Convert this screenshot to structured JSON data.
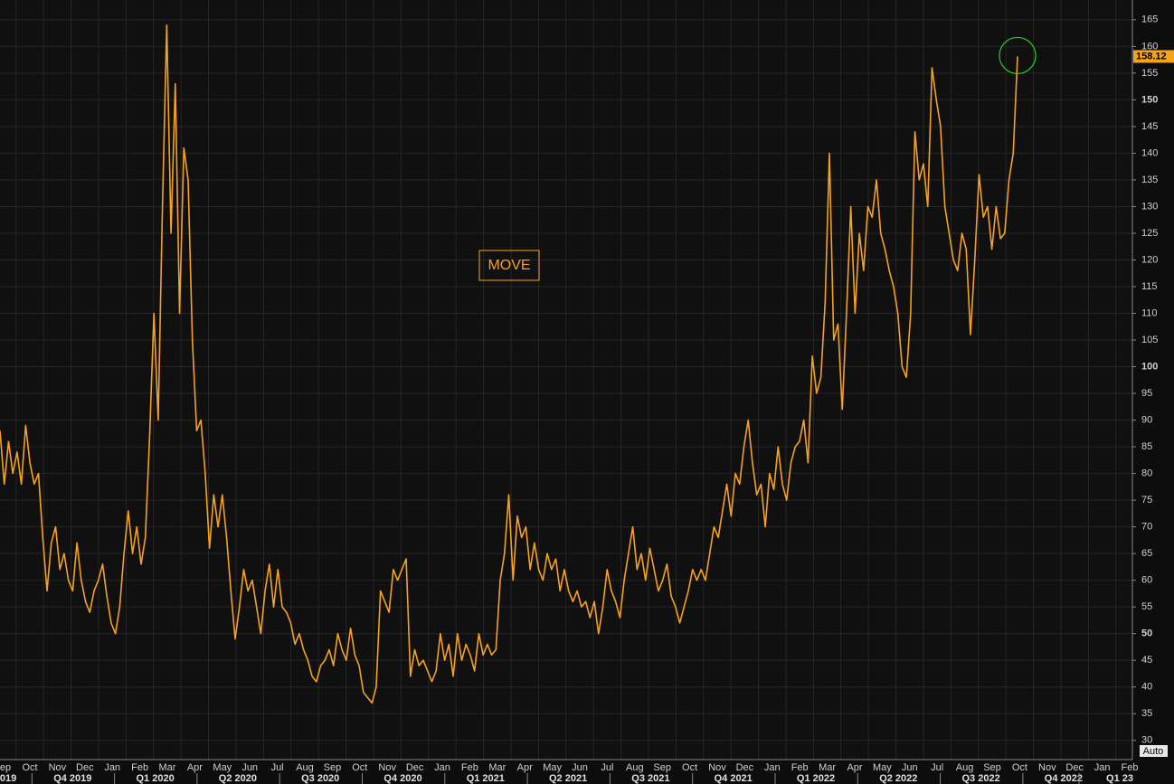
{
  "chart_data": {
    "type": "line",
    "series": [
      {
        "name": "MOVE",
        "color": "#f7a21b",
        "values": [
          88,
          78,
          86,
          80,
          84,
          78,
          89,
          82,
          78,
          80,
          68,
          58,
          67,
          70,
          62,
          65,
          60,
          58,
          67,
          60,
          56,
          54,
          58,
          60,
          63,
          57,
          52,
          50,
          55,
          65,
          73,
          65,
          70,
          63,
          68,
          87,
          110,
          90,
          130,
          164,
          125,
          153,
          110,
          141,
          135,
          105,
          88,
          90,
          80,
          66,
          76,
          70,
          76,
          68,
          58,
          49,
          55,
          62,
          58,
          60,
          55,
          50,
          58,
          63,
          55,
          62,
          55,
          54,
          52,
          48,
          50,
          47,
          45,
          42,
          41,
          44,
          45,
          47,
          44,
          50,
          47,
          45,
          51,
          46,
          44,
          39,
          38,
          37,
          40,
          58,
          56,
          54,
          62,
          60,
          62,
          64,
          42,
          47,
          44,
          45,
          43,
          41,
          43,
          50,
          45,
          48,
          42,
          50,
          45,
          48,
          46,
          43,
          50,
          46,
          48,
          46,
          47,
          60,
          65,
          76,
          60,
          72,
          68,
          70,
          62,
          67,
          62,
          60,
          65,
          62,
          64,
          58,
          62,
          58,
          56,
          58,
          55,
          56,
          53,
          56,
          50,
          55,
          62,
          58,
          56,
          53,
          60,
          65,
          70,
          62,
          65,
          60,
          66,
          62,
          58,
          60,
          63,
          57,
          55,
          52,
          55,
          58,
          62,
          60,
          62,
          60,
          65,
          70,
          68,
          73,
          78,
          72,
          80,
          78,
          85,
          90,
          82,
          76,
          78,
          70,
          80,
          77,
          85,
          78,
          75,
          82,
          85,
          86,
          90,
          82,
          102,
          95,
          98,
          112,
          140,
          105,
          108,
          92,
          110,
          130,
          110,
          125,
          118,
          130,
          128,
          135,
          125,
          122,
          118,
          115,
          110,
          100,
          98,
          110,
          144,
          135,
          138,
          130,
          156,
          150,
          145,
          130,
          125,
          120,
          118,
          125,
          122,
          106,
          120,
          136,
          128,
          130,
          122,
          130,
          124,
          125,
          135,
          140,
          158.12
        ]
      }
    ],
    "months": [
      "ep",
      "Oct",
      "Nov",
      "Dec",
      "Jan",
      "Feb",
      "Mar",
      "Apr",
      "May",
      "Jun",
      "Jul",
      "Aug",
      "Sep",
      "Oct",
      "Nov",
      "Dec",
      "Jan",
      "Feb",
      "Mar",
      "Apr",
      "May",
      "Jun",
      "Jul",
      "Aug",
      "Sep",
      "Oct",
      "Nov",
      "Dec",
      "Jan",
      "Feb",
      "Mar",
      "Apr",
      "May",
      "Jun",
      "Jul",
      "Aug",
      "Sep",
      "Oct",
      "Nov",
      "Dec",
      "Jan",
      "Feb"
    ],
    "quarters": [
      "019",
      "Q4 2019",
      "Q1 2020",
      "Q2 2020",
      "Q3 2020",
      "Q4 2020",
      "Q1 2021",
      "Q2 2021",
      "Q3 2021",
      "Q4 2021",
      "Q1 2022",
      "Q2 2022",
      "Q3 2022",
      "Q4 2022",
      "Q1 23"
    ],
    "ylim": [
      26.4,
      168.7
    ],
    "yticks": [
      30,
      35,
      40,
      45,
      50,
      55,
      60,
      65,
      70,
      75,
      80,
      85,
      90,
      95,
      100,
      105,
      110,
      115,
      120,
      125,
      130,
      135,
      140,
      145,
      150,
      155,
      160,
      165
    ],
    "grid": true,
    "footer_label": "Auto"
  }
}
